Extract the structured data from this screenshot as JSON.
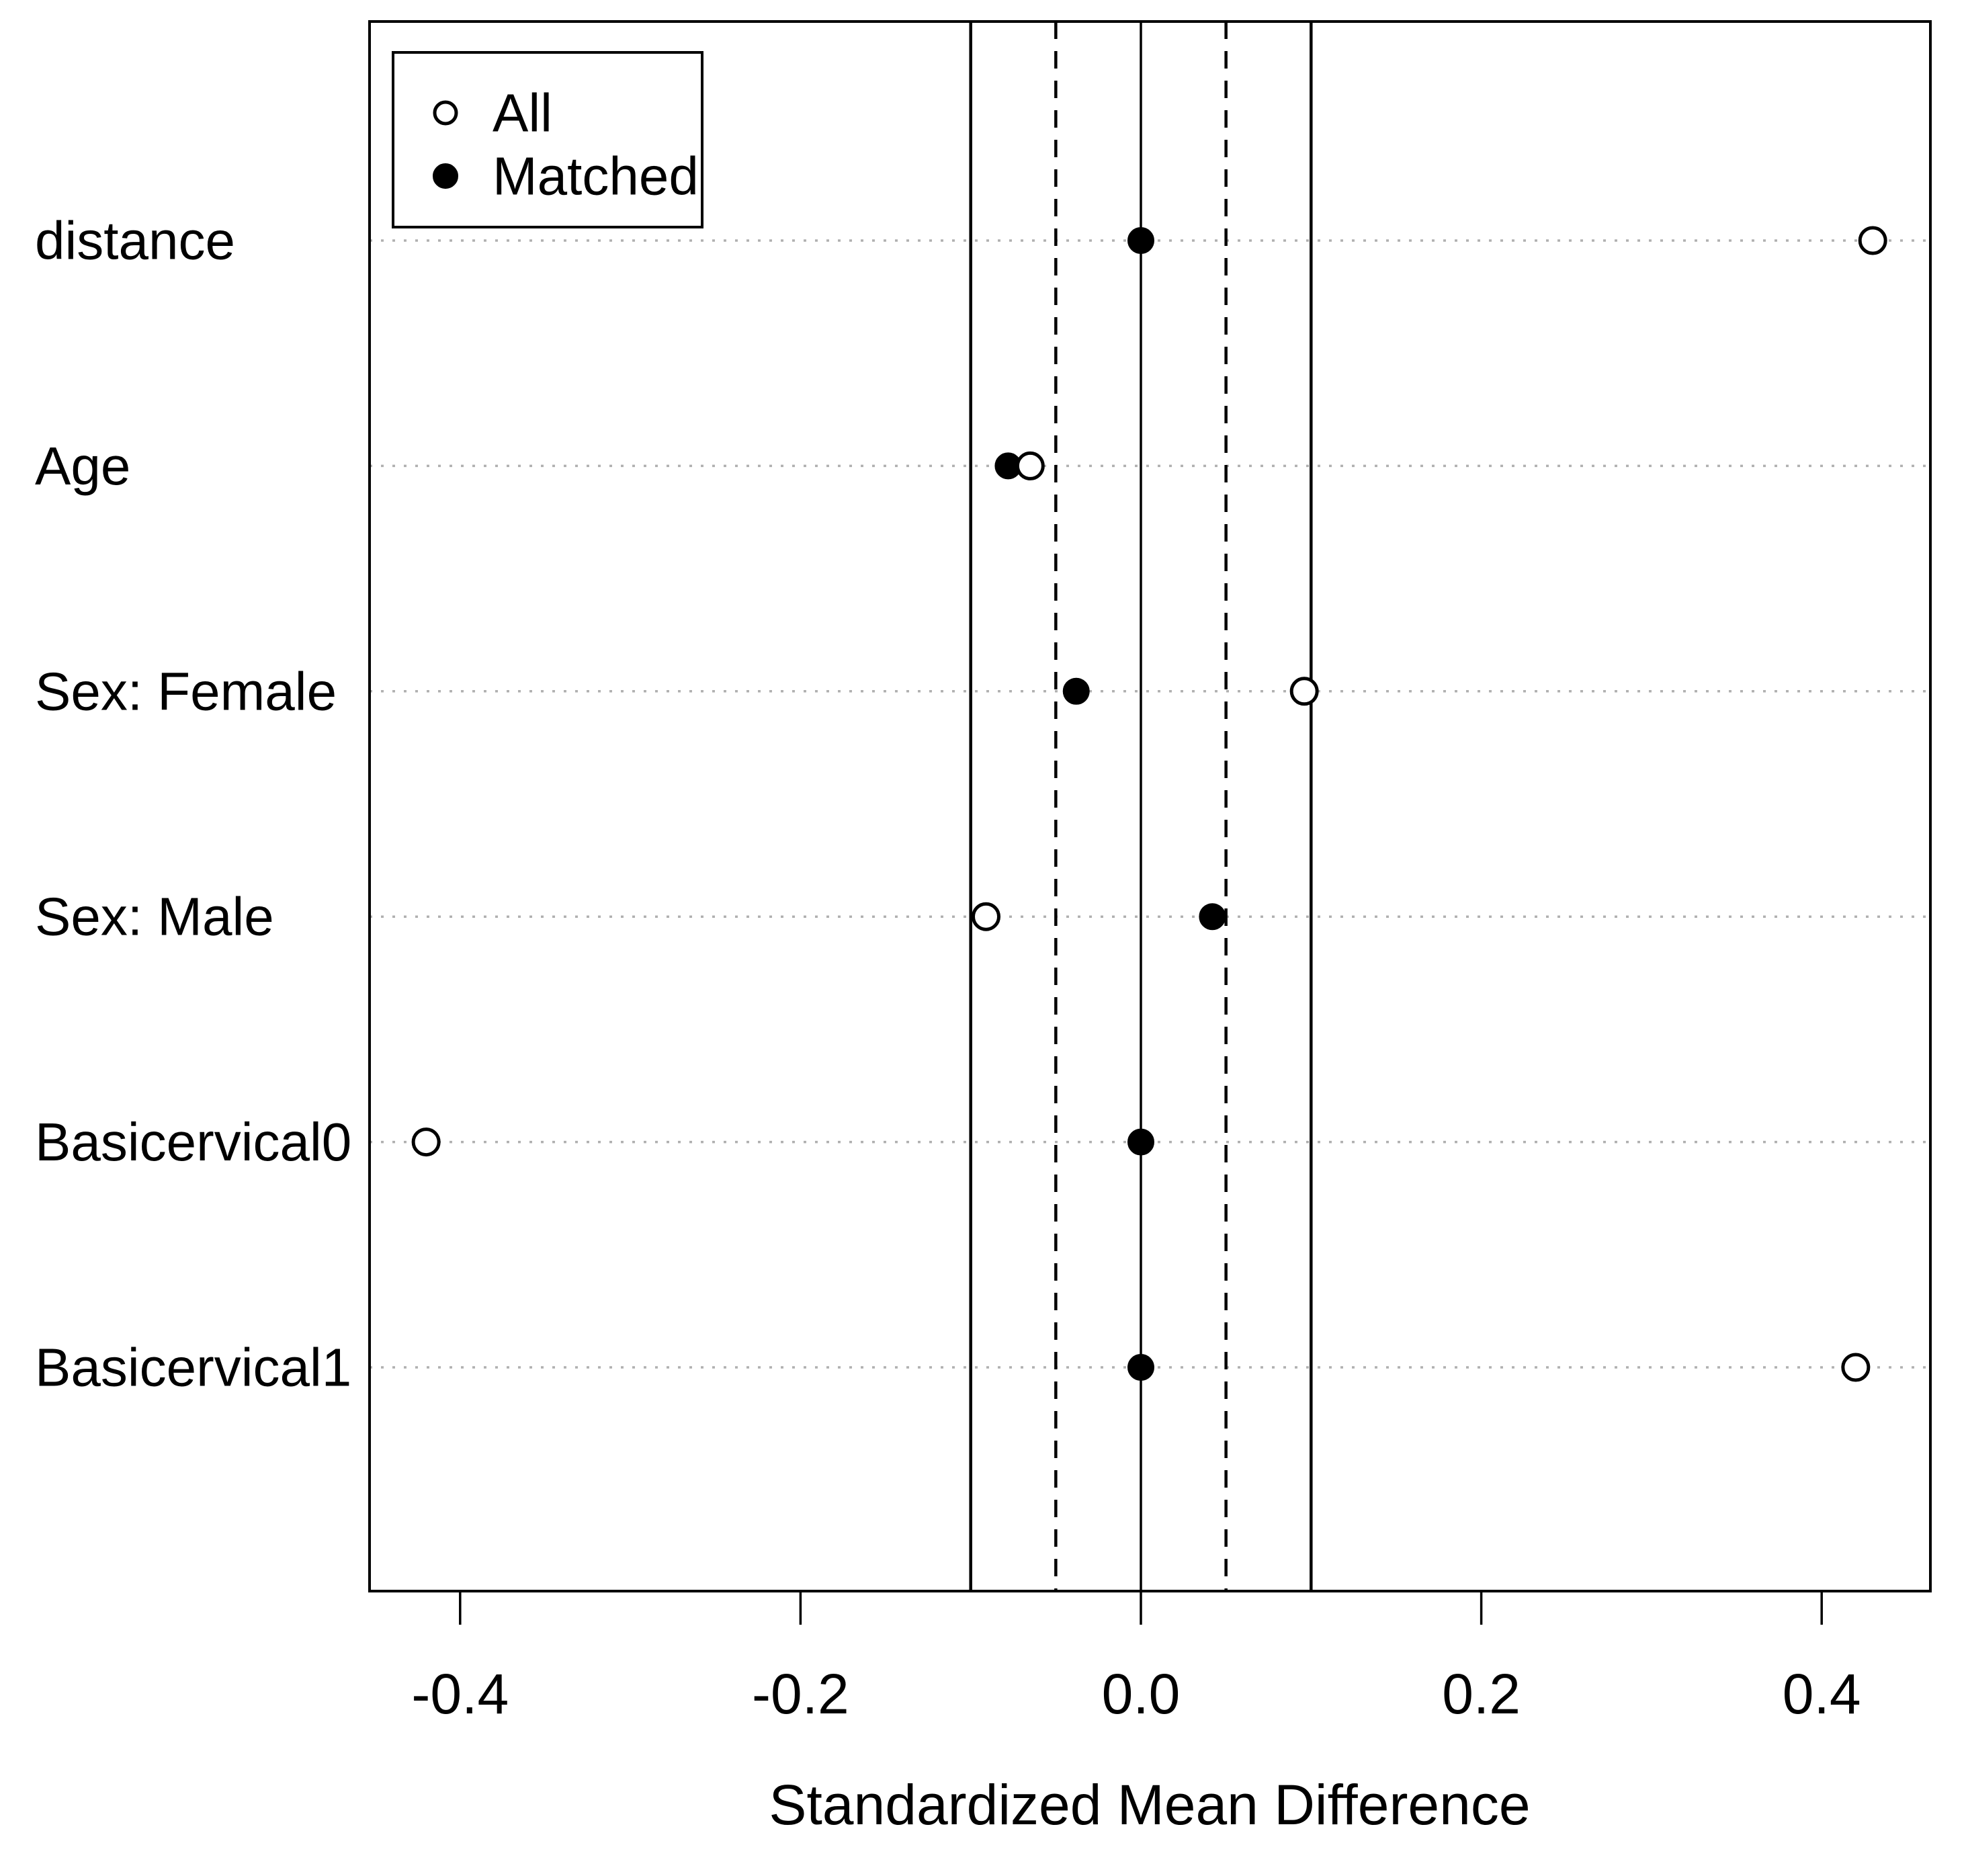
{
  "chart_data": {
    "type": "scatter",
    "variant": "dot-plot-horizontal-love-plot",
    "title": "",
    "xlabel": "Standardized Mean Difference",
    "ylabel": "",
    "categories": [
      "distance",
      "Age",
      "Sex: Female",
      "Sex: Male",
      "Basicervical0",
      "Basicervical1"
    ],
    "series": [
      {
        "name": "All",
        "marker": "open-circle",
        "values": [
          0.43,
          -0.065,
          0.096,
          -0.091,
          -0.42,
          0.42
        ]
      },
      {
        "name": "Matched",
        "marker": "filled-circle",
        "values": [
          0.0,
          -0.078,
          -0.038,
          0.042,
          0.0,
          0.0
        ]
      }
    ],
    "x_ticks": [
      -0.4,
      -0.2,
      0.0,
      0.2,
      0.4
    ],
    "x_tick_labels": [
      "-0.4",
      "-0.2",
      "0.0",
      "0.2",
      "0.4"
    ],
    "xlim": [
      -0.45,
      0.46
    ],
    "reference_lines": [
      {
        "x": 0.0,
        "style": "solid"
      },
      {
        "x": -0.05,
        "style": "dashed"
      },
      {
        "x": 0.05,
        "style": "dashed"
      },
      {
        "x": -0.1,
        "style": "solid"
      },
      {
        "x": 0.1,
        "style": "solid"
      }
    ],
    "gridlines": "dotted-horizontal-per-category",
    "legend_position": "top-left"
  },
  "legend": {
    "items": [
      {
        "label": "All",
        "marker": "open-circle"
      },
      {
        "label": "Matched",
        "marker": "filled-circle"
      }
    ]
  },
  "colors": {
    "foreground": "#000000",
    "gridline": "#b0b0b0",
    "background": "#ffffff",
    "open_marker_fill": "#ffffff"
  }
}
